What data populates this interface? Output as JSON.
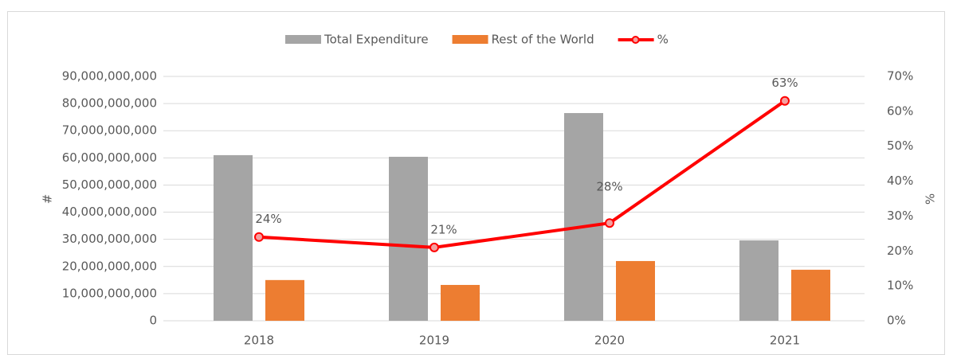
{
  "chart_data": {
    "type": "bar_line",
    "y_label": "#",
    "y2_label": "%",
    "categories": [
      "2018",
      "2019",
      "2020",
      "2021"
    ],
    "series": [
      {
        "name": "Total Expenditure",
        "color": "#a5a5a5",
        "type": "bar",
        "values": [
          61000000000,
          60400000000,
          76500000000,
          29600000000
        ]
      },
      {
        "name": "Rest of the World",
        "color": "#ed7d31",
        "type": "bar",
        "values": [
          15000000000,
          13200000000,
          22000000000,
          18800000000
        ]
      },
      {
        "name": "%",
        "color": "#ff0000",
        "type": "line",
        "axis": "y2",
        "values": [
          24,
          21,
          28,
          63
        ],
        "value_labels": [
          "24%",
          "21%",
          "28%",
          "63%"
        ]
      }
    ],
    "ylim": [
      0,
      90000000000
    ],
    "yticks": [
      0,
      {
        "value": 10000000000,
        "label": "10,000,000,000"
      },
      {
        "value": 20000000000,
        "label": "20,000,000,000"
      },
      {
        "value": 30000000000,
        "label": "30,000,000,000"
      },
      {
        "value": 40000000000,
        "label": "40,000,000,000"
      },
      {
        "value": 50000000000,
        "label": "50,000,000,000"
      },
      {
        "value": 60000000000,
        "label": "60,000,000,000"
      },
      {
        "value": 70000000000,
        "label": "70,000,000,000"
      },
      {
        "value": 80000000000,
        "label": "80,000,000,000"
      },
      {
        "value": 90000000000,
        "label": "90,000,000,000"
      }
    ],
    "y2lim": [
      0,
      70
    ],
    "y2ticks": [
      {
        "value": 0,
        "label": "0%"
      },
      {
        "value": 10,
        "label": "10%"
      },
      {
        "value": 20,
        "label": "20%"
      },
      {
        "value": 30,
        "label": "30%"
      },
      {
        "value": 40,
        "label": "40%"
      },
      {
        "value": 50,
        "label": "50%"
      },
      {
        "value": 60,
        "label": "60%"
      },
      {
        "value": 70,
        "label": "70%"
      }
    ],
    "grid": true,
    "legend": "top"
  }
}
